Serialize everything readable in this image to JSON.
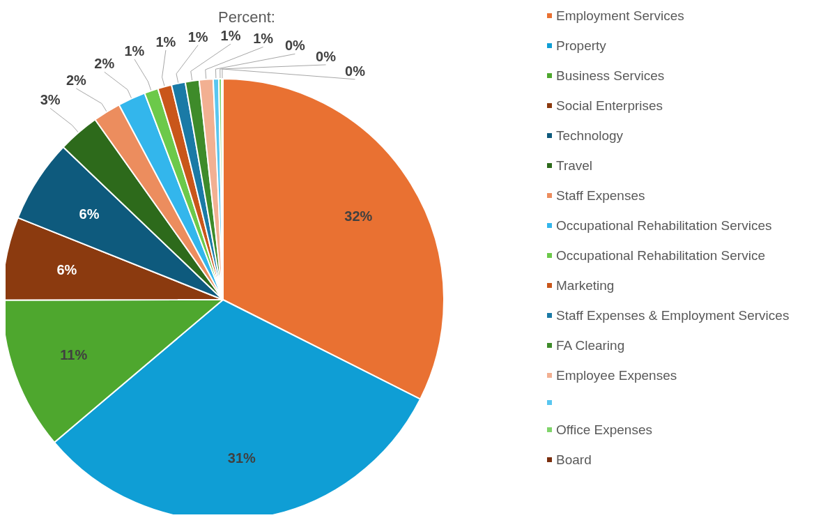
{
  "chart_data": {
    "type": "pie",
    "title": "Percent:",
    "categories": [
      "Employment Services",
      "Property",
      "Business Services",
      "Social Enterprises",
      "Technology",
      "Travel",
      "Staff Expenses",
      "Occupational Rehabilitation Services",
      "Occupational Rehabilitation Service",
      "Marketing",
      "Staff Expenses & Employment Services",
      "FA Clearing",
      "Employee Expenses",
      null,
      "Office Expenses",
      "Board"
    ],
    "values": [
      32,
      31,
      11,
      6,
      6,
      3,
      2,
      2,
      1,
      1,
      1,
      1,
      1,
      0.4,
      0.2,
      0.1
    ],
    "value_labels": [
      "32%",
      "31%",
      "11%",
      "6%",
      "6%",
      "3%",
      "2%",
      "2%",
      "1%",
      "1%",
      "1%",
      "1%",
      "1%",
      "0%",
      "0%",
      "0%"
    ],
    "colors": [
      "#e97132",
      "#0f9ed5",
      "#4ea72e",
      "#8b3a0f",
      "#0e5a7d",
      "#2d6a1b",
      "#ec8d5e",
      "#33b6ec",
      "#6cc94a",
      "#c9561a",
      "#1a7aa6",
      "#3e8b2a",
      "#f2b092",
      "#59c6f0",
      "#7fd46a",
      "#7a2e0e"
    ],
    "legend": "right"
  }
}
